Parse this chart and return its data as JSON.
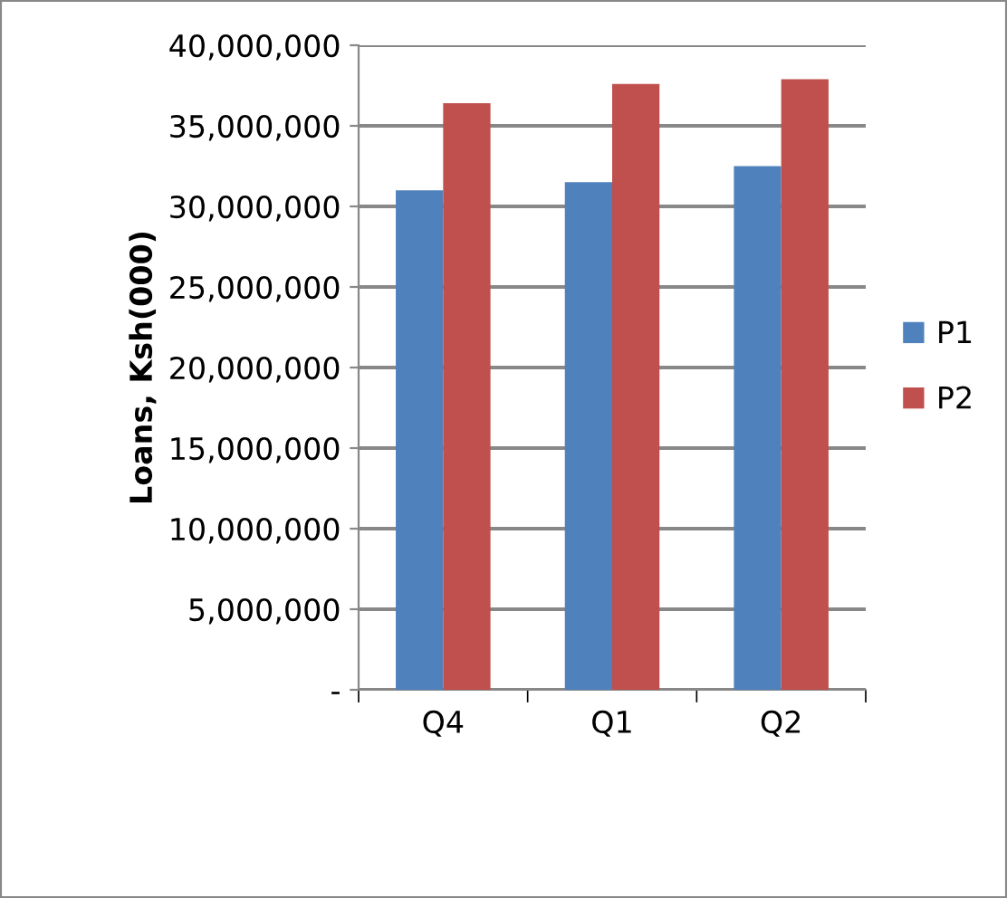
{
  "chart_data": {
    "type": "bar",
    "ylabel": "Loans, Ksh(000)",
    "categories": [
      "Q4",
      "Q1",
      "Q2"
    ],
    "series": [
      {
        "name": "P1",
        "color": "#4f81bd",
        "values": [
          31000000,
          31500000,
          32500000
        ]
      },
      {
        "name": "P2",
        "color": "#c0504d",
        "values": [
          36400000,
          37600000,
          37900000
        ]
      }
    ],
    "ylim": [
      0,
      40000000
    ],
    "yticks": [
      {
        "value": 0,
        "label": "-"
      },
      {
        "value": 5000000,
        "label": "5,000,000"
      },
      {
        "value": 10000000,
        "label": "10,000,000"
      },
      {
        "value": 15000000,
        "label": "15,000,000"
      },
      {
        "value": 20000000,
        "label": "20,000,000"
      },
      {
        "value": 25000000,
        "label": "25,000,000"
      },
      {
        "value": 30000000,
        "label": "30,000,000"
      },
      {
        "value": 35000000,
        "label": "35,000,000"
      },
      {
        "value": 40000000,
        "label": "40,000,000"
      }
    ],
    "grid": "y",
    "legend": "right"
  }
}
